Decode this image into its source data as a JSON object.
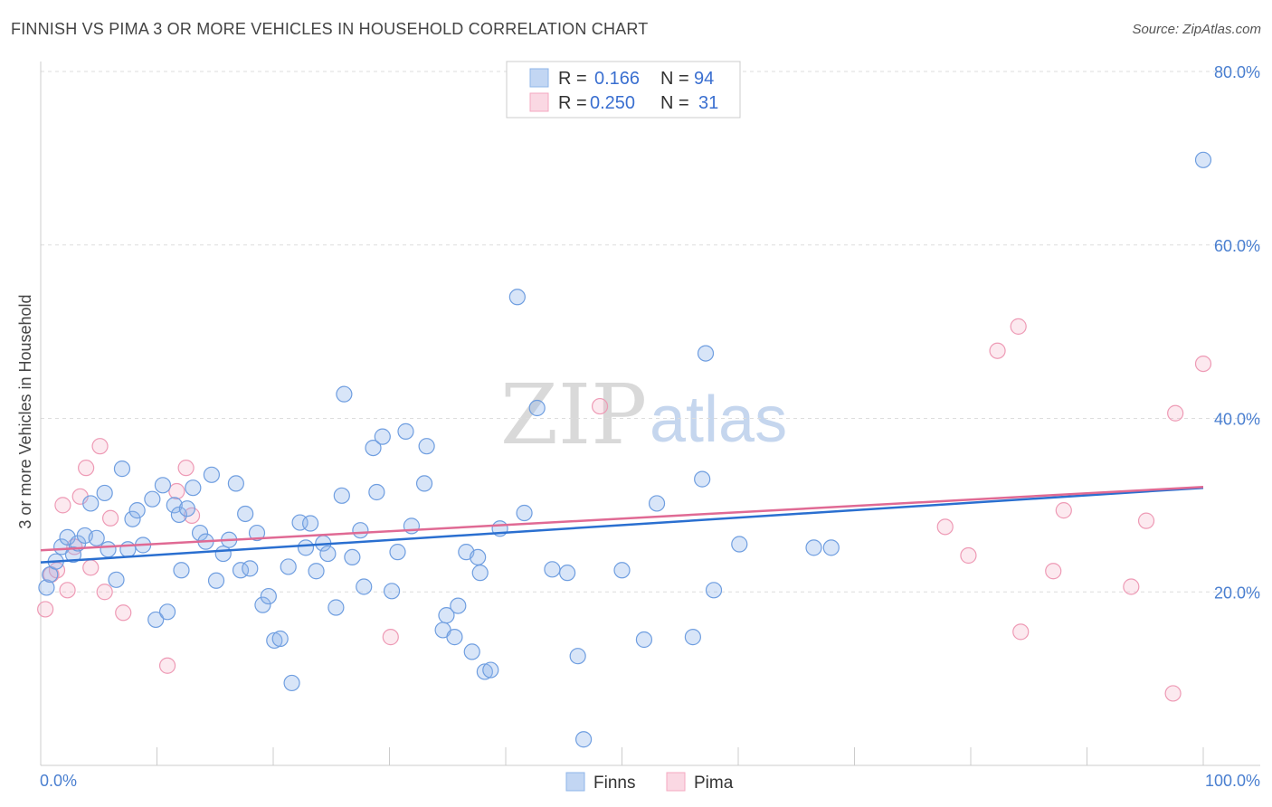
{
  "header": {
    "title": "FINNISH VS PIMA 3 OR MORE VEHICLES IN HOUSEHOLD CORRELATION CHART",
    "source": "Source: ZipAtlas.com"
  },
  "watermark": {
    "zip": "ZIP",
    "atlas": "atlas"
  },
  "legend": {
    "r_label": "R =",
    "n_label": "N =",
    "rows": [
      {
        "r": "0.166",
        "n": "94",
        "color": "#8fb5ea"
      },
      {
        "r": "0.250",
        "n": "31",
        "color": "#f4a9c0"
      }
    ]
  },
  "bottom_legend": [
    {
      "label": "Finns",
      "color": "#8fb5ea"
    },
    {
      "label": "Pima",
      "color": "#f4a9c0"
    }
  ],
  "colors": {
    "finns_fill": "rgba(143,181,234,0.35)",
    "finns_stroke": "#6f9ee0",
    "finns_line": "#2a6fd0",
    "pima_fill": "rgba(244,169,192,0.25)",
    "pima_stroke": "#ee9ab5",
    "pima_line": "#e06a94",
    "axis_tick": "#4a7fd0",
    "grid": "#dddddd"
  },
  "chart_data": {
    "type": "scatter",
    "title": "FINNISH VS PIMA 3 OR MORE VEHICLES IN HOUSEHOLD CORRELATION CHART",
    "xlabel": "",
    "ylabel": "3 or more Vehicles in Household",
    "xlim": [
      0,
      100
    ],
    "ylim": [
      0,
      80
    ],
    "x_ticks": [
      "0.0%",
      "100.0%"
    ],
    "y_ticks": [
      "20.0%",
      "40.0%",
      "60.0%",
      "80.0%"
    ],
    "grid": true,
    "legend_position": "top-center",
    "series": [
      {
        "name": "Finns",
        "r": 0.166,
        "n": 94,
        "trend": [
          [
            0,
            23.4
          ],
          [
            100,
            32.0
          ]
        ],
        "points": [
          [
            0.5,
            20.5
          ],
          [
            0.8,
            22.0
          ],
          [
            1.3,
            23.5
          ],
          [
            1.8,
            25.2
          ],
          [
            2.3,
            26.3
          ],
          [
            2.8,
            24.3
          ],
          [
            3.2,
            25.6
          ],
          [
            3.8,
            26.5
          ],
          [
            4.3,
            30.2
          ],
          [
            4.8,
            26.2
          ],
          [
            5.5,
            31.4
          ],
          [
            5.8,
            24.9
          ],
          [
            6.5,
            21.4
          ],
          [
            7.0,
            34.2
          ],
          [
            7.5,
            24.9
          ],
          [
            7.9,
            28.4
          ],
          [
            8.3,
            29.4
          ],
          [
            8.8,
            25.4
          ],
          [
            9.6,
            30.7
          ],
          [
            9.9,
            16.8
          ],
          [
            10.5,
            32.3
          ],
          [
            10.9,
            17.7
          ],
          [
            11.5,
            30.0
          ],
          [
            11.9,
            28.9
          ],
          [
            12.1,
            22.5
          ],
          [
            12.6,
            29.6
          ],
          [
            13.1,
            32.0
          ],
          [
            13.7,
            26.8
          ],
          [
            14.2,
            25.8
          ],
          [
            14.7,
            33.5
          ],
          [
            15.1,
            21.3
          ],
          [
            15.7,
            24.4
          ],
          [
            16.2,
            26.0
          ],
          [
            16.8,
            32.5
          ],
          [
            17.2,
            22.5
          ],
          [
            17.6,
            29.0
          ],
          [
            18.0,
            22.7
          ],
          [
            18.6,
            26.8
          ],
          [
            19.1,
            18.5
          ],
          [
            19.6,
            19.5
          ],
          [
            20.1,
            14.4
          ],
          [
            20.6,
            14.6
          ],
          [
            21.3,
            22.9
          ],
          [
            21.6,
            9.5
          ],
          [
            22.3,
            28.0
          ],
          [
            22.8,
            25.1
          ],
          [
            23.2,
            27.9
          ],
          [
            23.7,
            22.4
          ],
          [
            24.3,
            25.6
          ],
          [
            24.7,
            24.4
          ],
          [
            25.4,
            18.2
          ],
          [
            25.9,
            31.1
          ],
          [
            26.1,
            42.8
          ],
          [
            26.8,
            24.0
          ],
          [
            27.5,
            27.1
          ],
          [
            27.8,
            20.6
          ],
          [
            28.6,
            36.6
          ],
          [
            28.9,
            31.5
          ],
          [
            29.4,
            37.9
          ],
          [
            30.2,
            20.1
          ],
          [
            30.7,
            24.6
          ],
          [
            31.4,
            38.5
          ],
          [
            31.9,
            27.6
          ],
          [
            33.0,
            32.5
          ],
          [
            33.2,
            36.8
          ],
          [
            34.6,
            15.6
          ],
          [
            34.9,
            17.3
          ],
          [
            35.6,
            14.8
          ],
          [
            35.9,
            18.4
          ],
          [
            36.6,
            24.6
          ],
          [
            37.1,
            13.1
          ],
          [
            37.6,
            24.0
          ],
          [
            37.8,
            22.2
          ],
          [
            38.2,
            10.8
          ],
          [
            38.7,
            11.0
          ],
          [
            39.5,
            27.3
          ],
          [
            41.0,
            54.0
          ],
          [
            41.6,
            29.1
          ],
          [
            42.7,
            41.2
          ],
          [
            44.0,
            22.6
          ],
          [
            45.3,
            22.2
          ],
          [
            46.2,
            12.6
          ],
          [
            46.7,
            3.0
          ],
          [
            50.0,
            22.5
          ],
          [
            51.9,
            14.5
          ],
          [
            53.0,
            30.2
          ],
          [
            56.1,
            14.8
          ],
          [
            56.9,
            33.0
          ],
          [
            57.2,
            47.5
          ],
          [
            57.9,
            20.2
          ],
          [
            60.1,
            25.5
          ],
          [
            66.5,
            25.1
          ],
          [
            68.0,
            25.1
          ],
          [
            100.0,
            69.8
          ]
        ]
      },
      {
        "name": "Pima",
        "r": 0.25,
        "n": 31,
        "trend": [
          [
            0,
            24.8
          ],
          [
            100,
            32.1
          ]
        ],
        "points": [
          [
            0.4,
            18.0
          ],
          [
            0.9,
            22.0
          ],
          [
            1.4,
            22.5
          ],
          [
            1.9,
            30.0
          ],
          [
            2.3,
            20.2
          ],
          [
            2.9,
            25.2
          ],
          [
            3.4,
            31.0
          ],
          [
            3.9,
            34.3
          ],
          [
            4.3,
            22.8
          ],
          [
            5.1,
            36.8
          ],
          [
            5.5,
            20.0
          ],
          [
            6.0,
            28.5
          ],
          [
            7.1,
            17.6
          ],
          [
            10.9,
            11.5
          ],
          [
            11.7,
            31.6
          ],
          [
            12.5,
            34.3
          ],
          [
            13.0,
            28.8
          ],
          [
            30.1,
            14.8
          ],
          [
            48.1,
            41.4
          ],
          [
            77.8,
            27.5
          ],
          [
            79.8,
            24.2
          ],
          [
            82.3,
            47.8
          ],
          [
            84.1,
            50.6
          ],
          [
            84.3,
            15.4
          ],
          [
            87.1,
            22.4
          ],
          [
            88.0,
            29.4
          ],
          [
            93.8,
            20.6
          ],
          [
            95.1,
            28.2
          ],
          [
            97.4,
            8.3
          ],
          [
            97.6,
            40.6
          ],
          [
            100.0,
            46.3
          ]
        ]
      }
    ]
  }
}
